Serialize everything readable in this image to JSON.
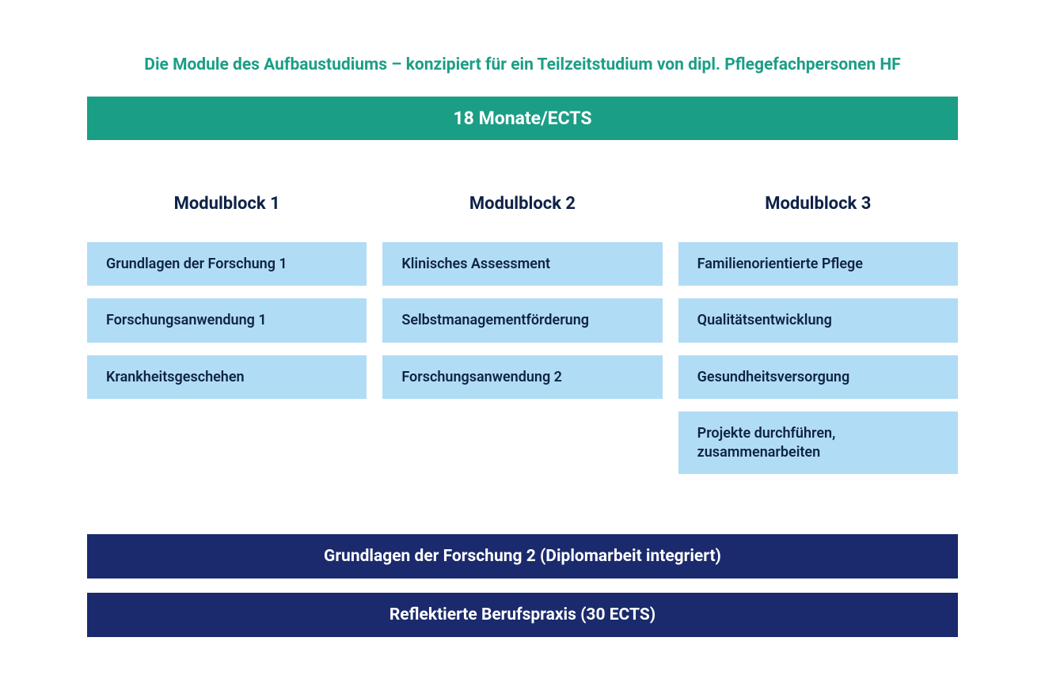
{
  "colors": {
    "title": "#1b9e86",
    "duration_bg": "#1b9e86",
    "duration_text": "#ffffff",
    "header_text": "#0f2248",
    "module_bg": "#b1dcf5",
    "module_text": "#0f2248",
    "wide_bg": "#1a2a6c",
    "wide_text": "#ffffff"
  },
  "title": "Die Module des Aufbaustudiums – konzipiert für ein Teilzeitstudium von dipl. Pflegefachpersonen HF",
  "duration": "18 Monate/ECTS",
  "columns": [
    {
      "header": "Modulblock 1",
      "items": [
        "Grundlagen der Forschung 1",
        "Forschungsanwendung 1",
        "Krankheitsgeschehen"
      ]
    },
    {
      "header": "Modulblock 2",
      "items": [
        "Klinisches Assessment",
        "Selbstmanagementförderung",
        "Forschungsanwendung 2"
      ]
    },
    {
      "header": "Modulblock 3",
      "items": [
        "Familienorientierte Pflege",
        "Qualitätsentwicklung",
        "Gesundheitsversorgung",
        "Projekte durchführen, zusammenarbeiten"
      ]
    }
  ],
  "wideBars": [
    "Grundlagen der Forschung 2 (Diplomarbeit integriert)",
    "Reflektierte Berufspraxis (30 ECTS)"
  ]
}
